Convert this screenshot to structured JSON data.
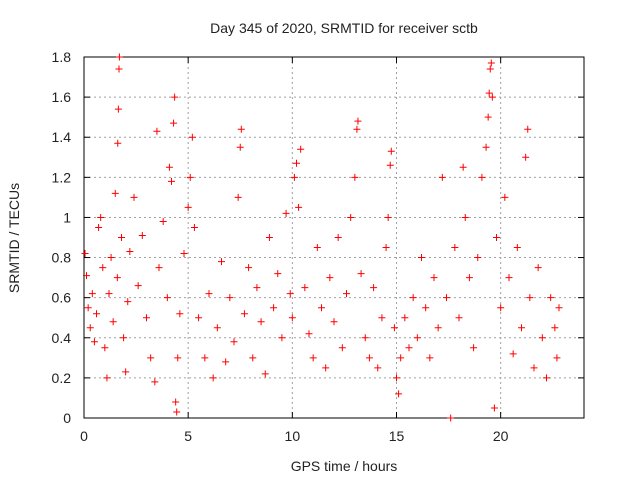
{
  "chart_data": {
    "type": "scatter",
    "title": "Day 345 of 2020, SRMTID for receiver sctb",
    "xlabel": "GPS time / hours",
    "ylabel": "SRMTID / TECUs",
    "xlim": [
      0,
      24
    ],
    "ylim": [
      0,
      1.8
    ],
    "xticks": [
      0,
      5,
      10,
      15,
      20
    ],
    "xtick_labels": [
      "0",
      "5",
      "10",
      "15",
      "20"
    ],
    "yticks": [
      0,
      0.2,
      0.4,
      0.6,
      0.8,
      1,
      1.2,
      1.4,
      1.6,
      1.8
    ],
    "ytick_labels": [
      "0",
      "0.2",
      "0.4",
      "0.6",
      "0.8",
      "1",
      "1.2",
      "1.4",
      "1.6",
      "1.8"
    ],
    "grid": true,
    "marker": "plus",
    "color": "#ff0000",
    "series": [
      {
        "name": "SRMTID",
        "points": [
          [
            0.05,
            0.82
          ],
          [
            0.12,
            0.71
          ],
          [
            0.2,
            0.55
          ],
          [
            0.3,
            0.45
          ],
          [
            0.4,
            0.62
          ],
          [
            0.5,
            0.38
          ],
          [
            0.6,
            0.52
          ],
          [
            0.7,
            0.95
          ],
          [
            0.8,
            1.0
          ],
          [
            0.9,
            0.75
          ],
          [
            1.0,
            0.35
          ],
          [
            1.1,
            0.2
          ],
          [
            1.2,
            0.62
          ],
          [
            1.3,
            0.8
          ],
          [
            1.4,
            0.48
          ],
          [
            1.5,
            1.12
          ],
          [
            1.6,
            0.7
          ],
          [
            1.62,
            1.37
          ],
          [
            1.65,
            1.54
          ],
          [
            1.68,
            1.74
          ],
          [
            1.7,
            1.8
          ],
          [
            1.8,
            0.9
          ],
          [
            1.9,
            0.4
          ],
          [
            2.0,
            0.23
          ],
          [
            2.1,
            0.58
          ],
          [
            2.2,
            0.83
          ],
          [
            2.4,
            1.1
          ],
          [
            2.6,
            0.66
          ],
          [
            2.8,
            0.91
          ],
          [
            3.0,
            0.5
          ],
          [
            3.2,
            0.3
          ],
          [
            3.4,
            0.18
          ],
          [
            3.5,
            1.43
          ],
          [
            3.6,
            0.75
          ],
          [
            3.8,
            0.98
          ],
          [
            4.0,
            0.6
          ],
          [
            4.1,
            1.25
          ],
          [
            4.2,
            1.18
          ],
          [
            4.3,
            1.47
          ],
          [
            4.35,
            1.6
          ],
          [
            4.4,
            0.08
          ],
          [
            4.45,
            0.03
          ],
          [
            4.5,
            0.3
          ],
          [
            4.6,
            0.52
          ],
          [
            4.8,
            0.82
          ],
          [
            5.0,
            1.05
          ],
          [
            5.1,
            1.2
          ],
          [
            5.2,
            1.4
          ],
          [
            5.3,
            0.95
          ],
          [
            5.5,
            0.5
          ],
          [
            5.8,
            0.3
          ],
          [
            6.0,
            0.62
          ],
          [
            6.2,
            0.2
          ],
          [
            6.4,
            0.45
          ],
          [
            6.6,
            0.78
          ],
          [
            6.8,
            0.28
          ],
          [
            7.0,
            0.6
          ],
          [
            7.2,
            0.38
          ],
          [
            7.4,
            1.1
          ],
          [
            7.5,
            1.35
          ],
          [
            7.55,
            1.44
          ],
          [
            7.7,
            0.52
          ],
          [
            7.9,
            0.75
          ],
          [
            8.1,
            0.3
          ],
          [
            8.3,
            0.65
          ],
          [
            8.5,
            0.48
          ],
          [
            8.7,
            0.22
          ],
          [
            8.9,
            0.9
          ],
          [
            9.1,
            0.55
          ],
          [
            9.3,
            0.72
          ],
          [
            9.5,
            0.4
          ],
          [
            9.7,
            1.02
          ],
          [
            9.9,
            0.62
          ],
          [
            10.0,
            0.5
          ],
          [
            10.1,
            1.2
          ],
          [
            10.2,
            1.27
          ],
          [
            10.3,
            1.05
          ],
          [
            10.4,
            1.34
          ],
          [
            10.6,
            0.65
          ],
          [
            10.8,
            0.42
          ],
          [
            11.0,
            0.3
          ],
          [
            11.2,
            0.85
          ],
          [
            11.4,
            0.55
          ],
          [
            11.6,
            0.25
          ],
          [
            11.8,
            0.7
          ],
          [
            12.0,
            0.48
          ],
          [
            12.2,
            0.9
          ],
          [
            12.4,
            0.35
          ],
          [
            12.6,
            0.62
          ],
          [
            12.8,
            1.0
          ],
          [
            13.0,
            1.2
          ],
          [
            13.1,
            1.44
          ],
          [
            13.15,
            1.48
          ],
          [
            13.3,
            0.72
          ],
          [
            13.5,
            0.4
          ],
          [
            13.7,
            0.3
          ],
          [
            13.9,
            0.65
          ],
          [
            14.1,
            0.25
          ],
          [
            14.3,
            0.5
          ],
          [
            14.5,
            0.85
          ],
          [
            14.6,
            1.0
          ],
          [
            14.7,
            1.26
          ],
          [
            14.75,
            1.33
          ],
          [
            14.9,
            0.45
          ],
          [
            15.0,
            0.2
          ],
          [
            15.1,
            0.12
          ],
          [
            15.2,
            0.3
          ],
          [
            15.4,
            0.5
          ],
          [
            15.6,
            0.35
          ],
          [
            15.8,
            0.6
          ],
          [
            16.0,
            0.4
          ],
          [
            16.2,
            0.8
          ],
          [
            16.4,
            0.55
          ],
          [
            16.6,
            0.3
          ],
          [
            16.8,
            0.7
          ],
          [
            17.0,
            0.45
          ],
          [
            17.2,
            1.2
          ],
          [
            17.4,
            0.6
          ],
          [
            17.6,
            0.0
          ],
          [
            17.8,
            0.85
          ],
          [
            18.0,
            0.5
          ],
          [
            18.2,
            1.25
          ],
          [
            18.3,
            1.0
          ],
          [
            18.5,
            0.7
          ],
          [
            18.7,
            0.35
          ],
          [
            18.9,
            0.8
          ],
          [
            19.1,
            1.2
          ],
          [
            19.3,
            1.35
          ],
          [
            19.4,
            1.5
          ],
          [
            19.45,
            1.62
          ],
          [
            19.5,
            1.74
          ],
          [
            19.55,
            1.77
          ],
          [
            19.6,
            1.6
          ],
          [
            19.7,
            0.05
          ],
          [
            19.8,
            0.9
          ],
          [
            20.0,
            0.55
          ],
          [
            20.2,
            1.1
          ],
          [
            20.4,
            0.7
          ],
          [
            20.6,
            0.32
          ],
          [
            20.8,
            0.85
          ],
          [
            21.0,
            0.45
          ],
          [
            21.2,
            1.3
          ],
          [
            21.3,
            1.44
          ],
          [
            21.4,
            0.6
          ],
          [
            21.6,
            0.25
          ],
          [
            21.8,
            0.75
          ],
          [
            22.0,
            0.4
          ],
          [
            22.2,
            0.2
          ],
          [
            22.4,
            0.6
          ],
          [
            22.6,
            0.45
          ],
          [
            22.7,
            0.3
          ],
          [
            22.8,
            0.55
          ]
        ]
      }
    ]
  }
}
